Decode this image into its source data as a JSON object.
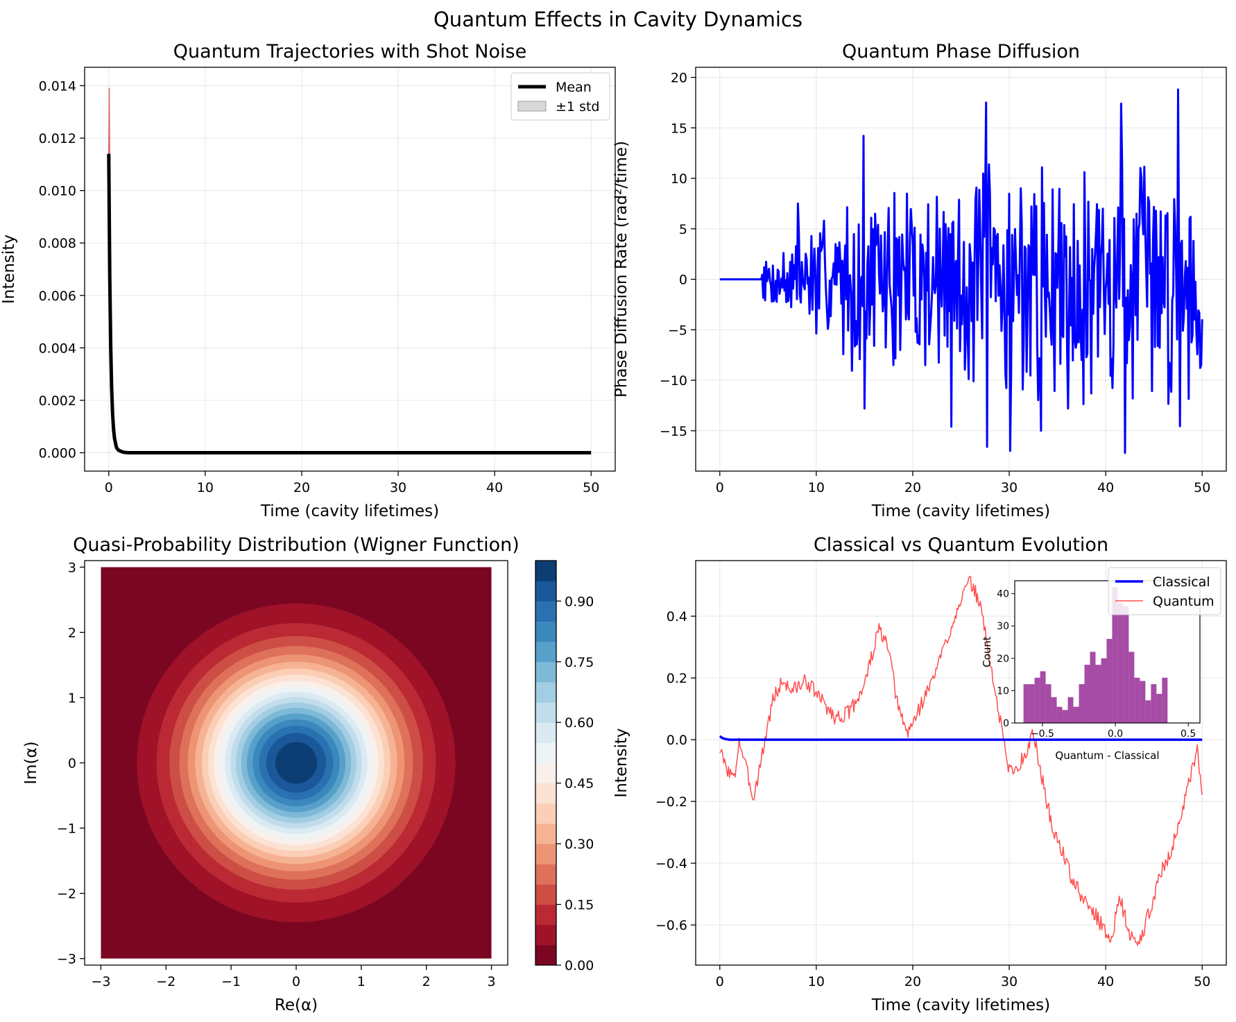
{
  "figure": {
    "suptitle": "Quantum Effects in Cavity Dynamics"
  },
  "chart_data": [
    {
      "id": "trajectories",
      "type": "line",
      "title": "Quantum Trajectories with Shot Noise",
      "xlabel": "Time (cavity lifetimes)",
      "ylabel": "Intensity",
      "xlim": [
        -2.5,
        52.5
      ],
      "ylim": [
        -0.0007,
        0.0147
      ],
      "xticks": [
        0,
        10,
        20,
        30,
        40,
        50
      ],
      "yticks": [
        0.0,
        0.002,
        0.004,
        0.006,
        0.008,
        0.01,
        0.012,
        0.014
      ],
      "ytick_labels": [
        "0.000",
        "0.002",
        "0.004",
        "0.006",
        "0.008",
        "0.010",
        "0.012",
        "0.014"
      ],
      "grid": true,
      "legend": {
        "position": "upper right",
        "entries": [
          "Mean",
          "±1 std"
        ]
      },
      "series": [
        {
          "name": "Mean",
          "color": "#000000",
          "x": [
            0,
            0.1,
            0.2,
            0.3,
            0.4,
            0.5,
            0.6,
            0.8,
            1.0,
            1.5,
            2,
            5,
            10,
            20,
            30,
            40,
            50
          ],
          "y": [
            0.0114,
            0.0068,
            0.0041,
            0.0025,
            0.0015,
            0.0009,
            0.00055,
            0.0002,
            0.0001,
            2e-05,
            0,
            0,
            0,
            0,
            0,
            0,
            0
          ]
        },
        {
          "name": "trajectory",
          "color": "#d62728",
          "x": [
            0,
            0.05,
            0.1
          ],
          "y": [
            0.0114,
            0.0139,
            0.0112
          ]
        }
      ],
      "band": {
        "name": "±1 std",
        "x": [
          0,
          0.1,
          0.2,
          0.3,
          0.5,
          0.8,
          1.0,
          1.5,
          2
        ],
        "lower": [
          0.0108,
          0.0055,
          0.0032,
          0.0019,
          0.0007,
          0.0001,
          5e-05,
          0,
          0
        ],
        "upper": [
          0.0121,
          0.0078,
          0.005,
          0.0031,
          0.0011,
          0.0003,
          0.00015,
          4e-05,
          0
        ]
      }
    },
    {
      "id": "phase",
      "type": "line",
      "title": "Quantum Phase Diffusion",
      "xlabel": "Time (cavity lifetimes)",
      "ylabel": "Phase Diffusion Rate (rad²/time)",
      "xlim": [
        -2.5,
        52.5
      ],
      "ylim": [
        -19,
        21
      ],
      "xticks": [
        0,
        10,
        20,
        30,
        40,
        50
      ],
      "yticks": [
        -15,
        -10,
        -5,
        0,
        5,
        10,
        15,
        20
      ],
      "ytick_labels": [
        "−15",
        "−10",
        "−5",
        "0",
        "5",
        "10",
        "15",
        "20"
      ],
      "grid": true,
      "series": [
        {
          "name": "phase-diffusion",
          "color": "#0000ff",
          "noise_from": 4.3,
          "noise_seed": 7,
          "envelope": [
            [
              4.3,
              2
            ],
            [
              8,
              6
            ],
            [
              15,
              10
            ],
            [
              25,
              13
            ],
            [
              50,
              15
            ]
          ],
          "x": [
            0,
            4.3,
            4.6,
            8.1,
            14.9,
            15.0,
            24.0,
            27.6,
            27.7,
            30.1,
            33.3,
            41.6,
            42.0,
            47.5,
            49.9
          ],
          "y": [
            0,
            0,
            1.2,
            7.5,
            14.2,
            -12.8,
            -14.6,
            17.5,
            -16.6,
            -17.0,
            -15.0,
            17.4,
            -17.2,
            18.8,
            -8.5
          ]
        }
      ]
    },
    {
      "id": "wigner",
      "type": "heatmap",
      "title": "Quasi-Probability Distribution (Wigner Function)",
      "xlabel": "Re(α)",
      "ylabel": "Im(α)",
      "xlim": [
        -3.25,
        3.25
      ],
      "ylim": [
        -3.1,
        3.1
      ],
      "xticks": [
        -3,
        -2,
        -1,
        0,
        1,
        2,
        3
      ],
      "yticks": [
        -3,
        -2,
        -1,
        0,
        1,
        2,
        3
      ],
      "xtick_labels": [
        "−3",
        "−2",
        "−1",
        "0",
        "1",
        "2",
        "3"
      ],
      "ytick_labels": [
        "−3",
        "−2",
        "−1",
        "0",
        "1",
        "2",
        "3"
      ],
      "function": "exp(-(x^2+y^2)/2)",
      "domain": [
        -3,
        3
      ],
      "levels": 20,
      "vmin": 0,
      "vmax": 1,
      "colorbar": {
        "ticks": [
          0.0,
          0.15,
          0.3,
          0.45,
          0.6,
          0.75,
          0.9
        ],
        "labels": [
          "0.00",
          "0.15",
          "0.30",
          "0.45",
          "0.60",
          "0.75",
          "0.90"
        ],
        "colormap": "RdBu"
      }
    },
    {
      "id": "evolution",
      "type": "line",
      "title": "Classical vs Quantum Evolution",
      "xlabel": "Time (cavity lifetimes)",
      "ylabel": "Intensity",
      "xlim": [
        -2.5,
        52.5
      ],
      "ylim": [
        -0.73,
        0.58
      ],
      "xticks": [
        0,
        10,
        20,
        30,
        40,
        50
      ],
      "yticks": [
        -0.6,
        -0.4,
        -0.2,
        0.0,
        0.2,
        0.4
      ],
      "ytick_labels": [
        "−0.6",
        "−0.4",
        "−0.2",
        "0.0",
        "0.2",
        "0.4"
      ],
      "grid": true,
      "legend": {
        "position": "upper right",
        "entries": [
          "Classical",
          "Quantum"
        ]
      },
      "series": [
        {
          "name": "Classical",
          "color": "#0000ff",
          "x": [
            0,
            0.3,
            0.6,
            1,
            50
          ],
          "y": [
            0.011,
            0.005,
            0.002,
            0,
            0
          ]
        },
        {
          "name": "Quantum",
          "color": "#ff4d4d",
          "jitter_seed": 3,
          "x": [
            0,
            0.5,
            1.5,
            2,
            3.5,
            4.5,
            5.5,
            6.5,
            7.5,
            9,
            10.5,
            12,
            13.5,
            15,
            16.5,
            17.5,
            18.5,
            19.5,
            20.5,
            22,
            23.5,
            25,
            26,
            27,
            28.5,
            30,
            31,
            32.5,
            33.5,
            34.5,
            35.5,
            36.5,
            37.5,
            39,
            40.5,
            41.5,
            42.5,
            43.5,
            44.5,
            45.5,
            47,
            48.5,
            49.5,
            50
          ],
          "y": [
            -0.03,
            -0.08,
            -0.13,
            0.0,
            -0.19,
            -0.03,
            0.13,
            0.19,
            0.16,
            0.19,
            0.13,
            0.07,
            0.09,
            0.18,
            0.36,
            0.29,
            0.1,
            0.02,
            0.09,
            0.19,
            0.32,
            0.46,
            0.51,
            0.44,
            0.16,
            -0.1,
            -0.09,
            0.02,
            -0.14,
            -0.29,
            -0.36,
            -0.45,
            -0.51,
            -0.57,
            -0.65,
            -0.51,
            -0.64,
            -0.66,
            -0.56,
            -0.45,
            -0.34,
            -0.16,
            -0.04,
            -0.18
          ]
        }
      ],
      "inset": {
        "type": "histogram",
        "xlabel": "Quantum - Classical",
        "ylabel": "Count",
        "xlim": [
          -0.69,
          0.58
        ],
        "ylim": [
          0,
          44
        ],
        "xticks": [
          -0.5,
          0.0,
          0.5
        ],
        "xtick_labels": [
          "−0.5",
          "0.0",
          "0.5"
        ],
        "yticks": [
          0,
          10,
          20,
          30,
          40
        ],
        "color": "#800080",
        "bin_start": -0.63,
        "bin_width": 0.038,
        "counts": [
          12,
          12,
          14,
          16,
          12,
          8,
          5,
          4,
          8,
          5,
          12,
          18,
          22,
          18,
          20,
          26,
          42,
          37,
          36,
          22,
          14,
          13,
          7,
          12,
          9,
          14
        ]
      }
    }
  ]
}
